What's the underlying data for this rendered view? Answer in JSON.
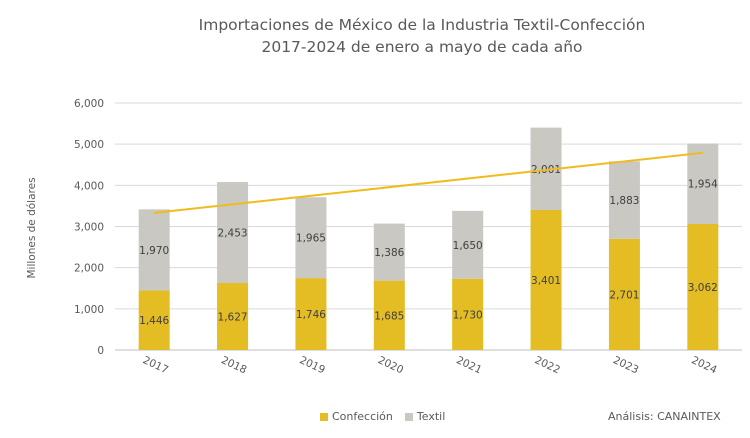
{
  "chart_data": {
    "type": "bar",
    "title_line1": "Importaciones de México de la Industria Textil-Confección",
    "title_line2": "2017-2024 de enero a mayo de cada año",
    "ylabel": "Millones de dólares",
    "xlabel": "",
    "categories": [
      "2017",
      "2018",
      "2019",
      "2020",
      "2021",
      "2022",
      "2023",
      "2024"
    ],
    "series": [
      {
        "name": "Confección",
        "color": "#e3bd23",
        "values": [
          1446,
          1627,
          1746,
          1685,
          1730,
          3401,
          2701,
          3062
        ],
        "labels": [
          "1,446",
          "1,627",
          "1,746",
          "1,685",
          "1,730",
          "3,401",
          "2,701",
          "3,062"
        ]
      },
      {
        "name": "Textil",
        "color": "#c9c8c3",
        "values": [
          1970,
          2453,
          1965,
          1386,
          1650,
          2001,
          1883,
          1954
        ],
        "labels": [
          "1,970",
          "2,453",
          "1,965",
          "1,386",
          "1,650",
          "2,001",
          "1,883",
          "1,954"
        ]
      }
    ],
    "trendline": {
      "color": "#f0bc1c",
      "start": 3330,
      "end": 4790
    },
    "ylim": [
      0,
      6000
    ],
    "yticks": [
      0,
      1000,
      2000,
      3000,
      4000,
      5000,
      6000
    ],
    "ytick_labels": [
      "0",
      "1,000",
      "2,000",
      "3,000",
      "4,000",
      "5,000",
      "6,000"
    ],
    "grid": true,
    "legend_position": "bottom"
  },
  "legend": {
    "confeccion": "Confección",
    "textil": "Textil"
  },
  "credit": "Análisis: CANAINTEX"
}
